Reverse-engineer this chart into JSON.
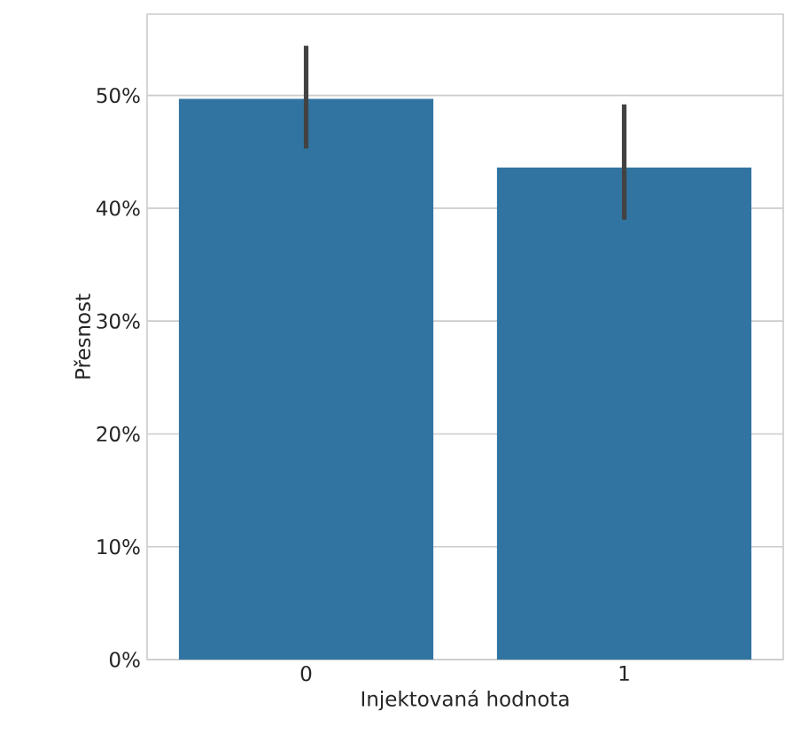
{
  "chart_data": {
    "type": "bar",
    "xlabel": "Injektovaná hodnota",
    "ylabel": "Přesnost",
    "categories": [
      "0",
      "1"
    ],
    "values": [
      49.7,
      43.6
    ],
    "errors": [
      [
        45.3,
        54.4
      ],
      [
        39.0,
        49.2
      ]
    ],
    "color": "#3274a1",
    "ylim": [
      0,
      57.2
    ],
    "yticks": [
      {
        "value": 0,
        "label": "0%"
      },
      {
        "value": 10,
        "label": "10%"
      },
      {
        "value": 20,
        "label": "20%"
      },
      {
        "value": 30,
        "label": "30%"
      },
      {
        "value": 40,
        "label": "40%"
      },
      {
        "value": 50,
        "label": "50%"
      }
    ],
    "grid": "y"
  }
}
